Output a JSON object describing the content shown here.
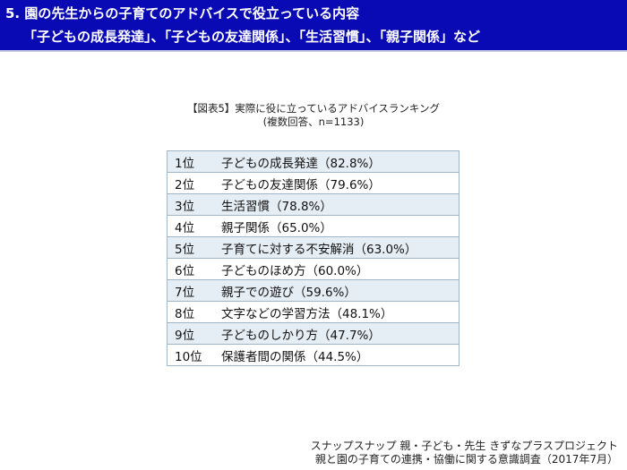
{
  "header": {
    "title": "5.  園の先生からの子育てのアドバイスで役立っている内容",
    "subtitle": "「子どもの成長発達」、「子どもの友達関係」、「生活習慣」、「親子関係」など",
    "background_color": "#0a0ab4"
  },
  "caption": {
    "title": "【図表5】実際に役に立っているアドバイスランキング",
    "note": "(複数回答、n=1133)"
  },
  "ranking": [
    {
      "rank": "1位",
      "item": "子どもの成長発達（82.8%）"
    },
    {
      "rank": "2位",
      "item": "子どもの友達関係（79.6%）"
    },
    {
      "rank": "3位",
      "item": "生活習慣（78.8%）"
    },
    {
      "rank": "4位",
      "item": "親子関係（65.0%）"
    },
    {
      "rank": "5位",
      "item": "子育てに対する不安解消（63.0%）"
    },
    {
      "rank": "6位",
      "item": "子どものほめ方（60.0%）"
    },
    {
      "rank": "7位",
      "item": "親子での遊び（59.6%）"
    },
    {
      "rank": "8位",
      "item": "文字などの学習方法（48.1%）"
    },
    {
      "rank": "9位",
      "item": "子どものしかり方（47.7%）"
    },
    {
      "rank": "10位",
      "item": "保護者間の関係（44.5%）"
    }
  ],
  "footer": {
    "line1": "スナップスナップ 親・子ども・先生 きずなプラスプロジェクト",
    "line2": "親と園の子育ての連携・協働に関する意識調査（2017年7月）"
  }
}
